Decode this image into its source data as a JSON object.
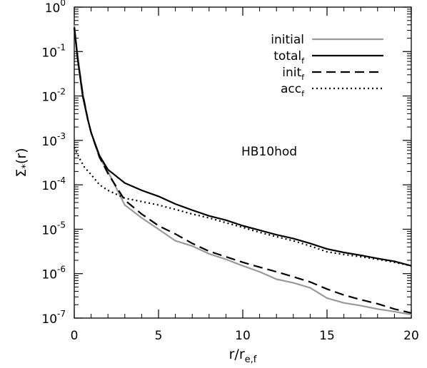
{
  "chart_data": {
    "type": "line",
    "title": "",
    "xlabel": "r/r",
    "xlabel_sub": "e,f",
    "ylabel": "Σ",
    "ylabel_sub": "*",
    "ylabel_suffix": "(r)",
    "xlim": [
      0,
      20
    ],
    "ylim": [
      1e-07,
      1
    ],
    "yscale": "log",
    "grid": false,
    "legend_position": "top-right",
    "annotation": "HB10hod",
    "x_ticks": [
      0,
      5,
      10,
      15,
      20
    ],
    "x_tick_labels": [
      "0",
      "5",
      "10",
      "15",
      "20"
    ],
    "y_ticks": [
      {
        "base": "10",
        "exp": "0",
        "value": 1
      },
      {
        "base": "10",
        "exp": "-1",
        "value": 0.1
      },
      {
        "base": "10",
        "exp": "-2",
        "value": 0.01
      },
      {
        "base": "10",
        "exp": "-3",
        "value": 0.001
      },
      {
        "base": "10",
        "exp": "-4",
        "value": 0.0001
      },
      {
        "base": "10",
        "exp": "-5",
        "value": 1e-05
      },
      {
        "base": "10",
        "exp": "-6",
        "value": 1e-06
      },
      {
        "base": "10",
        "exp": "-7",
        "value": 1e-07
      }
    ],
    "series": [
      {
        "name": "initial",
        "subscript": "",
        "color": "#999999",
        "dash": "solid",
        "x": [
          0,
          0.2,
          0.5,
          0.8,
          1.0,
          1.5,
          2.0,
          3.0,
          4.0,
          5.0,
          6.0,
          7.0,
          8.0,
          9.0,
          10.0,
          11.0,
          12.0,
          13.0,
          14.0,
          15.0,
          16.0,
          17.0,
          18.0,
          19.0,
          20.0
        ],
        "y": [
          0.4,
          0.08,
          0.012,
          0.003,
          0.0015,
          0.0004,
          0.0002,
          3.5e-05,
          1.8e-05,
          1e-05,
          5.5e-06,
          4.2e-06,
          2.8e-06,
          2.1e-06,
          1.5e-06,
          1.1e-06,
          7.5e-07,
          6.2e-07,
          4.8e-07,
          2.8e-07,
          2.2e-07,
          1.9e-07,
          1.6e-07,
          1.4e-07,
          1.2e-07
        ]
      },
      {
        "name": "total",
        "subscript": "f",
        "color": "#000000",
        "dash": "solid",
        "x": [
          0,
          0.2,
          0.5,
          0.8,
          1.0,
          1.5,
          2.0,
          3.0,
          4.0,
          5.0,
          6.0,
          7.0,
          8.0,
          9.0,
          10.0,
          11.0,
          12.0,
          13.0,
          14.0,
          15.0,
          16.0,
          17.0,
          18.0,
          19.0,
          20.0
        ],
        "y": [
          0.35,
          0.07,
          0.01,
          0.003,
          0.0015,
          0.00045,
          0.00022,
          0.00011,
          7.5e-05,
          5.5e-05,
          3.7e-05,
          2.7e-05,
          2e-05,
          1.6e-05,
          1.2e-05,
          9.5e-06,
          7.5e-06,
          6.2e-06,
          4.8e-06,
          3.6e-06,
          3e-06,
          2.6e-06,
          2.2e-06,
          1.9e-06,
          1.5e-06
        ]
      },
      {
        "name": "init",
        "subscript": "f",
        "color": "#000000",
        "dash": "dashed",
        "x": [
          0,
          0.2,
          0.5,
          0.8,
          1.0,
          1.5,
          2.0,
          3.0,
          4.0,
          5.0,
          6.0,
          7.0,
          8.0,
          9.0,
          10.0,
          11.0,
          12.0,
          13.0,
          14.0,
          15.0,
          16.0,
          17.0,
          18.0,
          19.0,
          20.0
        ],
        "y": [
          0.35,
          0.07,
          0.011,
          0.003,
          0.0015,
          0.00042,
          0.00018,
          4.5e-05,
          2.2e-05,
          1.2e-05,
          7.8e-06,
          4.8e-06,
          3.2e-06,
          2.4e-06,
          1.8e-06,
          1.4e-06,
          1.1e-06,
          8.5e-07,
          6.5e-07,
          4.5e-07,
          3.3e-07,
          2.6e-07,
          2.1e-07,
          1.6e-07,
          1.3e-07
        ]
      },
      {
        "name": "acc",
        "subscript": "f",
        "color": "#000000",
        "dash": "dotted",
        "x": [
          0,
          0.3,
          0.6,
          1.0,
          1.5,
          2.0,
          3.0,
          4.0,
          5.0,
          6.0,
          7.0,
          8.0,
          9.0,
          10.0,
          11.0,
          12.0,
          13.0,
          14.0,
          15.0,
          16.0,
          17.0,
          18.0,
          19.0,
          20.0
        ],
        "y": [
          0.0007,
          0.0004,
          0.00025,
          0.00017,
          0.0001,
          7.5e-05,
          5e-05,
          4.2e-05,
          3.5e-05,
          2.8e-05,
          2.2e-05,
          1.8e-05,
          1.4e-05,
          1.1e-05,
          8.5e-06,
          6.8e-06,
          5.5e-06,
          4.2e-06,
          3.1e-06,
          2.7e-06,
          2.4e-06,
          2.1e-06,
          1.8e-06,
          1.5e-06
        ]
      }
    ]
  }
}
